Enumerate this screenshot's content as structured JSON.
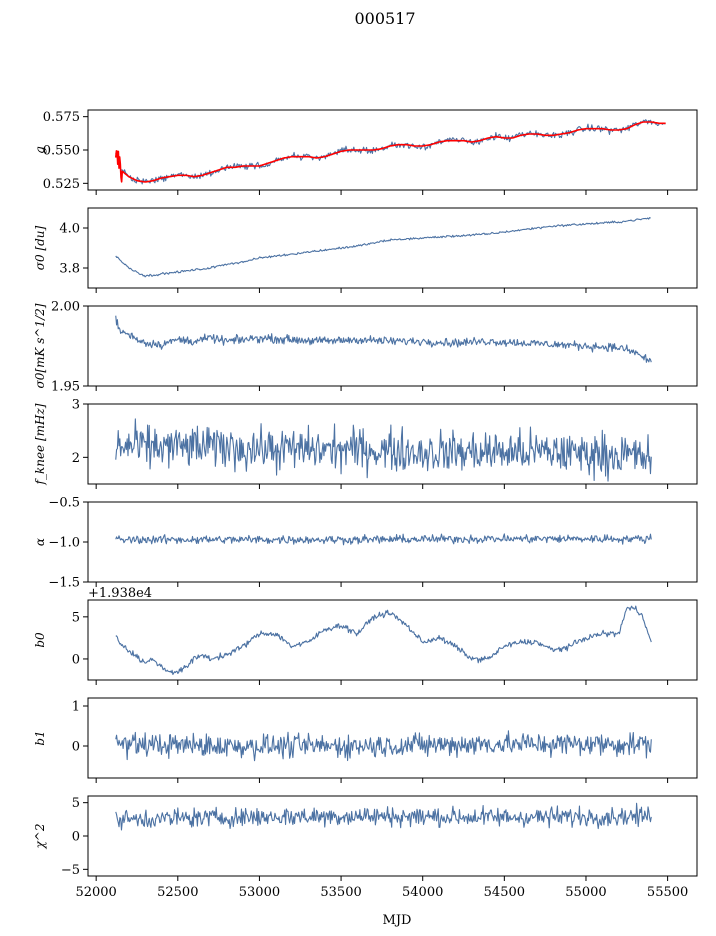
{
  "figure": {
    "title": "000517",
    "xlabel": "MJD",
    "line_color": "#4c72a3",
    "fit_color": "#ff0000",
    "xlim": [
      51950,
      55680
    ],
    "xticks": [
      52000,
      52500,
      53000,
      53500,
      54000,
      54500,
      55000,
      55500
    ],
    "xtick_labels": [
      "52000",
      "52500",
      "53000",
      "53500",
      "54000",
      "54500",
      "55000",
      "55500"
    ]
  },
  "chart_data": [
    {
      "type": "line",
      "ylabel": "g",
      "ylim": [
        0.52,
        0.58
      ],
      "yticks": [
        0.525,
        0.55,
        0.575
      ],
      "ytick_labels": [
        "0.525",
        "0.550",
        "0.575"
      ],
      "noise": 0.002,
      "series": [
        {
          "role": "data",
          "color": "#4c72a3",
          "x": [
            52120,
            52140,
            52160,
            52200,
            52250,
            52300,
            52350,
            52400,
            52450,
            52500,
            52550,
            52600,
            52650,
            52700,
            52750,
            52800,
            52850,
            52900,
            52950,
            53000,
            53050,
            53100,
            53150,
            53200,
            53250,
            53300,
            53350,
            53400,
            53450,
            53500,
            53550,
            53600,
            53650,
            53700,
            53750,
            53800,
            53850,
            53900,
            53950,
            54000,
            54050,
            54100,
            54150,
            54200,
            54250,
            54300,
            54350,
            54400,
            54450,
            54500,
            54550,
            54600,
            54650,
            54700,
            54750,
            54800,
            54850,
            54900,
            54950,
            55000,
            55050,
            55100,
            55150,
            55200,
            55250,
            55300,
            55350,
            55400,
            55450,
            55490
          ],
          "y": [
            0.548,
            0.54,
            0.534,
            0.53,
            0.527,
            0.526,
            0.527,
            0.529,
            0.53,
            0.531,
            0.531,
            0.53,
            0.531,
            0.533,
            0.535,
            0.537,
            0.537,
            0.538,
            0.538,
            0.538,
            0.54,
            0.542,
            0.544,
            0.545,
            0.545,
            0.545,
            0.544,
            0.545,
            0.547,
            0.549,
            0.55,
            0.55,
            0.55,
            0.55,
            0.551,
            0.553,
            0.554,
            0.554,
            0.553,
            0.553,
            0.554,
            0.556,
            0.557,
            0.557,
            0.557,
            0.556,
            0.557,
            0.559,
            0.56,
            0.559,
            0.559,
            0.561,
            0.562,
            0.562,
            0.561,
            0.561,
            0.562,
            0.563,
            0.565,
            0.566,
            0.566,
            0.566,
            0.565,
            0.565,
            0.566,
            0.569,
            0.571,
            0.571,
            0.57,
            0.57
          ]
        },
        {
          "role": "fit",
          "color": "#ff0000",
          "x": [
            52120,
            52140,
            52160,
            52200,
            52250,
            52300,
            52350,
            52400,
            52450,
            52500,
            52550,
            52600,
            52650,
            52700,
            52750,
            52800,
            52850,
            52900,
            52950,
            53000,
            53050,
            53100,
            53150,
            53200,
            53250,
            53300,
            53350,
            53400,
            53450,
            53500,
            53550,
            53600,
            53650,
            53700,
            53750,
            53800,
            53850,
            53900,
            53950,
            54000,
            54050,
            54100,
            54150,
            54200,
            54250,
            54300,
            54350,
            54400,
            54450,
            54500,
            54550,
            54600,
            54650,
            54700,
            54750,
            54800,
            54850,
            54900,
            54950,
            55000,
            55050,
            55100,
            55150,
            55200,
            55250,
            55300,
            55350,
            55400,
            55450,
            55490
          ],
          "y": [
            0.548,
            0.54,
            0.534,
            0.53,
            0.527,
            0.526,
            0.527,
            0.529,
            0.53,
            0.531,
            0.531,
            0.53,
            0.531,
            0.533,
            0.535,
            0.537,
            0.537,
            0.538,
            0.538,
            0.538,
            0.54,
            0.542,
            0.544,
            0.545,
            0.545,
            0.545,
            0.544,
            0.545,
            0.547,
            0.549,
            0.55,
            0.55,
            0.55,
            0.55,
            0.551,
            0.553,
            0.554,
            0.554,
            0.553,
            0.553,
            0.554,
            0.556,
            0.557,
            0.557,
            0.557,
            0.556,
            0.557,
            0.559,
            0.56,
            0.559,
            0.559,
            0.561,
            0.562,
            0.562,
            0.561,
            0.561,
            0.562,
            0.563,
            0.565,
            0.566,
            0.566,
            0.566,
            0.565,
            0.565,
            0.566,
            0.569,
            0.571,
            0.571,
            0.57,
            0.57
          ]
        }
      ]
    },
    {
      "type": "line",
      "ylabel": "σ0 [du]",
      "ylim": [
        3.7,
        4.1
      ],
      "yticks": [
        3.8,
        4.0
      ],
      "ytick_labels": [
        "3.8",
        "4.0"
      ],
      "noise": 0.004,
      "series": [
        {
          "role": "data",
          "color": "#4c72a3",
          "x": [
            52120,
            52200,
            52300,
            52400,
            52500,
            52600,
            52700,
            52800,
            52900,
            53000,
            53200,
            53400,
            53600,
            53800,
            54000,
            54200,
            54400,
            54600,
            54800,
            55000,
            55200,
            55400
          ],
          "y": [
            3.86,
            3.8,
            3.76,
            3.77,
            3.78,
            3.79,
            3.8,
            3.82,
            3.83,
            3.85,
            3.87,
            3.89,
            3.91,
            3.94,
            3.95,
            3.96,
            3.97,
            3.99,
            4.01,
            4.02,
            4.03,
            4.05
          ]
        }
      ]
    },
    {
      "type": "line",
      "ylabel": "σ0[mK s^1/2]",
      "ylim": [
        1.95,
        2.0
      ],
      "yticks": [
        1.95,
        2.0
      ],
      "ytick_labels": [
        "1.95",
        "2.00"
      ],
      "noise": 0.002,
      "series": [
        {
          "role": "data",
          "color": "#4c72a3",
          "x": [
            52120,
            52140,
            52200,
            52300,
            52400,
            52500,
            52600,
            52700,
            52800,
            52900,
            53000,
            53200,
            53400,
            53600,
            53800,
            54000,
            54200,
            54400,
            54600,
            54800,
            55000,
            55200,
            55300,
            55400
          ],
          "y": [
            1.993,
            1.985,
            1.982,
            1.977,
            1.976,
            1.979,
            1.978,
            1.98,
            1.978,
            1.979,
            1.98,
            1.979,
            1.978,
            1.979,
            1.978,
            1.978,
            1.977,
            1.978,
            1.977,
            1.976,
            1.975,
            1.974,
            1.971,
            1.965
          ]
        }
      ]
    },
    {
      "type": "line",
      "ylabel": "f_knee [mHz]",
      "ylim": [
        1.5,
        3.0
      ],
      "yticks": [
        2.0,
        3.0
      ],
      "ytick_labels": [
        "2",
        "3"
      ],
      "noise": 0.3,
      "series": [
        {
          "role": "data",
          "color": "#4c72a3",
          "x": [
            52120,
            52400,
            52800,
            53000,
            53200,
            53600,
            54000,
            54400,
            54800,
            55200,
            55400
          ],
          "y": [
            2.2,
            2.2,
            2.2,
            2.15,
            2.15,
            2.15,
            2.1,
            2.1,
            2.1,
            2.05,
            2.0
          ]
        }
      ]
    },
    {
      "type": "line",
      "ylabel": "α",
      "ylim": [
        -1.5,
        -0.5
      ],
      "yticks": [
        -1.5,
        -1.0,
        -0.5
      ],
      "ytick_labels": [
        "−1.5",
        "−1.0",
        "−0.5"
      ],
      "noise": 0.04,
      "series": [
        {
          "role": "data",
          "color": "#4c72a3",
          "x": [
            52120,
            52800,
            53600,
            54400,
            55400
          ],
          "y": [
            -0.97,
            -0.97,
            -0.97,
            -0.96,
            -0.96
          ]
        }
      ]
    },
    {
      "type": "line",
      "ylabel": "b0",
      "offset_text": "+1.938e4",
      "ylim": [
        -2.5,
        7
      ],
      "yticks": [
        0,
        5
      ],
      "ytick_labels": [
        "0",
        "5"
      ],
      "noise": 0.25,
      "series": [
        {
          "role": "data",
          "color": "#4c72a3",
          "x": [
            52120,
            52140,
            52200,
            52300,
            52350,
            52400,
            52450,
            52500,
            52550,
            52600,
            52650,
            52700,
            52800,
            52900,
            53000,
            53100,
            53200,
            53300,
            53400,
            53500,
            53600,
            53700,
            53800,
            53900,
            54000,
            54100,
            54200,
            54300,
            54400,
            54500,
            54600,
            54700,
            54800,
            54900,
            55000,
            55100,
            55200,
            55250,
            55300,
            55350,
            55400
          ],
          "y": [
            3,
            2,
            1,
            -0.5,
            0,
            -1,
            -1.5,
            -1.5,
            -1,
            0,
            0.5,
            0,
            0.5,
            1.5,
            3,
            3,
            1.5,
            2,
            3.5,
            4,
            3,
            5,
            5.5,
            4,
            2,
            2.5,
            1.5,
            0,
            0,
            1.5,
            2,
            2,
            1,
            1.5,
            2.5,
            3,
            3,
            6,
            6,
            5,
            2
          ]
        }
      ]
    },
    {
      "type": "line",
      "ylabel": "b1",
      "ylim": [
        -0.8,
        1.2
      ],
      "yticks": [
        0,
        1
      ],
      "ytick_labels": [
        "0",
        "1"
      ],
      "noise": 0.22,
      "series": [
        {
          "role": "data",
          "color": "#4c72a3",
          "x": [
            52120,
            52800,
            53600,
            54400,
            55400
          ],
          "y": [
            0.05,
            0.0,
            0.0,
            0.05,
            0.05
          ]
        }
      ]
    },
    {
      "type": "line",
      "ylabel": "χ^2",
      "ylim": [
        -6,
        6
      ],
      "yticks": [
        -5,
        0,
        5
      ],
      "ytick_labels": [
        "−5",
        "0",
        "5"
      ],
      "noise": 1.1,
      "series": [
        {
          "role": "data",
          "color": "#4c72a3",
          "x": [
            52120,
            52800,
            53600,
            54400,
            55400
          ],
          "y": [
            2.5,
            2.8,
            3.0,
            2.8,
            3.0
          ]
        }
      ]
    }
  ]
}
